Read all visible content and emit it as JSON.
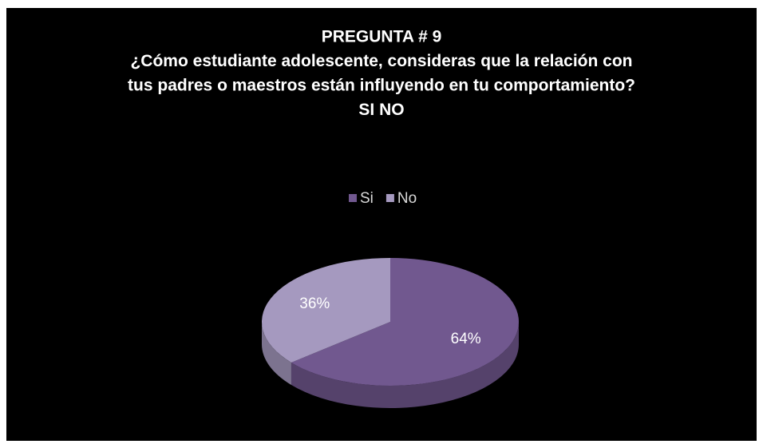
{
  "chart_data": {
    "type": "pie",
    "title": [
      "PREGUNTA # 9",
      "¿Cómo estudiante adolescente, consideras que la relación con",
      "tus padres o maestros están influyendo en tu comportamiento?",
      "SI  NO"
    ],
    "categories": [
      "Si",
      "No"
    ],
    "values": [
      64,
      36
    ],
    "value_labels": [
      "64%",
      "36%"
    ],
    "colors": [
      "#71588f",
      "#a599bf"
    ],
    "legend": "top"
  }
}
